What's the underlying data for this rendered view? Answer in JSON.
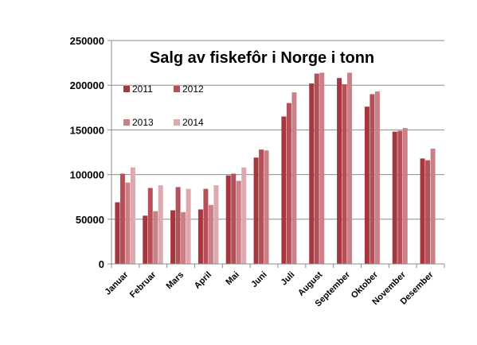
{
  "chart_data": {
    "type": "bar",
    "title": "Salg av fiskefôr i Norge i tonn",
    "xlabel": "",
    "ylabel": "",
    "ylim": [
      0,
      250000
    ],
    "yticks": [
      0,
      50000,
      100000,
      150000,
      200000,
      250000
    ],
    "ytick_labels": [
      "0",
      "50000",
      "100000",
      "150000",
      "200000",
      "250000"
    ],
    "grid": true,
    "legend_position": "top-left",
    "categories": [
      "Januar",
      "Februar",
      "Mars",
      "April",
      "Mai",
      "Juni",
      "Juli",
      "August",
      "September",
      "Oktober",
      "November",
      "Desember"
    ],
    "series": [
      {
        "name": "2011",
        "color": "#A4373F",
        "values": [
          69000,
          54000,
          60000,
          61000,
          99000,
          119000,
          165000,
          202000,
          208000,
          176000,
          148000,
          118000
        ]
      },
      {
        "name": "2012",
        "color": "#B65058",
        "values": [
          101000,
          85000,
          86000,
          84000,
          101000,
          128000,
          180000,
          213000,
          201000,
          190000,
          149000,
          116000
        ]
      },
      {
        "name": "2013",
        "color": "#CB7F86",
        "values": [
          91000,
          59000,
          58000,
          66000,
          93000,
          127000,
          192000,
          214000,
          214000,
          193000,
          152000,
          129000
        ]
      },
      {
        "name": "2014",
        "color": "#DDA9AE",
        "values": [
          108000,
          88000,
          84000,
          88000,
          108000,
          null,
          null,
          null,
          null,
          null,
          null,
          null
        ]
      }
    ]
  }
}
